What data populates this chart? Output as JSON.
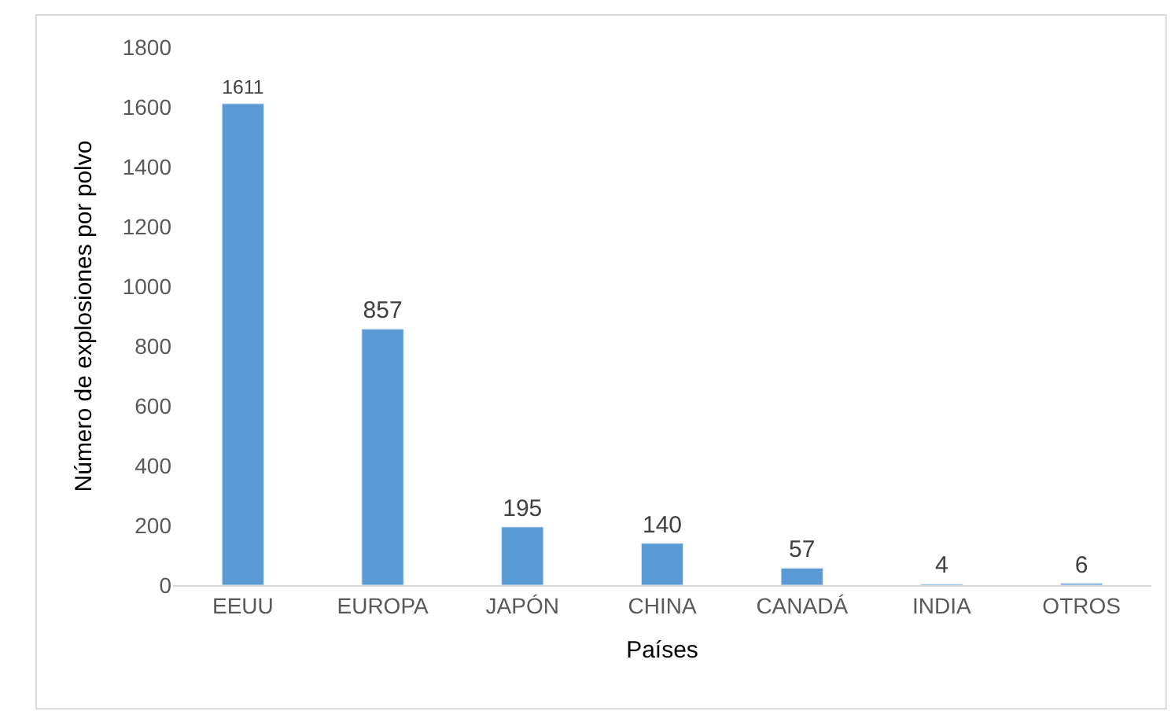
{
  "chart_data": {
    "type": "bar",
    "xlabel": "Países",
    "ylabel": "Número de explosiones por polvo",
    "categories": [
      "EEUU",
      "EUROPA",
      "JAPÓN",
      "CHINA",
      "CANADÁ",
      "INDIA",
      "OTROS"
    ],
    "values": [
      1611,
      857,
      195,
      140,
      57,
      4,
      6
    ],
    "color": "#5b9bd5",
    "ylim": [
      0,
      1800
    ],
    "yticks": [
      0,
      200,
      400,
      600,
      800,
      1000,
      1200,
      1400,
      1600,
      1800
    ],
    "grid": false,
    "data_labels": true,
    "legend": false
  }
}
